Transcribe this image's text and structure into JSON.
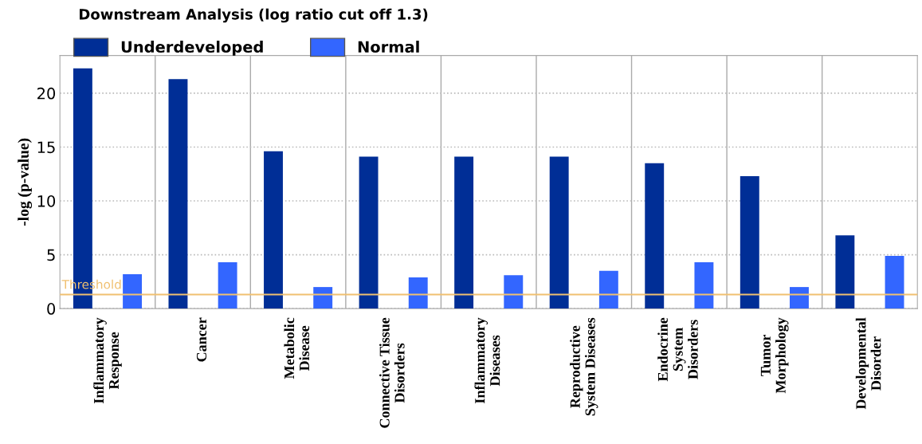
{
  "chart_data": {
    "type": "bar",
    "title": "Downstream Analysis (log ratio cut off 1.3)",
    "ylabel": "-log (p-value)",
    "categories": [
      "Inflammatory\nResponse",
      "Cancer",
      "Metabolic\nDisease",
      "Connective Tissue\nDisorders",
      "Inflammatory\nDiseases",
      "Reproductive\nSystem Diseases",
      "Endocrine\nSystem\nDisorders",
      "Tumor\nMorphology",
      "Developmental\nDisorder"
    ],
    "series": [
      {
        "name": "Underdeveloped",
        "color": "#002e96",
        "values": [
          22.3,
          21.3,
          14.6,
          14.1,
          14.1,
          14.1,
          13.5,
          12.3,
          6.8
        ]
      },
      {
        "name": "Normal",
        "color": "#3366ff",
        "values": [
          3.2,
          4.3,
          2.0,
          2.9,
          3.1,
          3.5,
          4.3,
          2.0,
          4.9
        ]
      }
    ],
    "ylim": [
      0,
      23.5
    ],
    "yticks": [
      0,
      5,
      10,
      15,
      20
    ],
    "ref_lines": [
      {
        "axis": "y",
        "value": 1.3,
        "label": "Threshold",
        "color": "#f0c070"
      }
    ],
    "grid": true,
    "legend": "top left"
  }
}
